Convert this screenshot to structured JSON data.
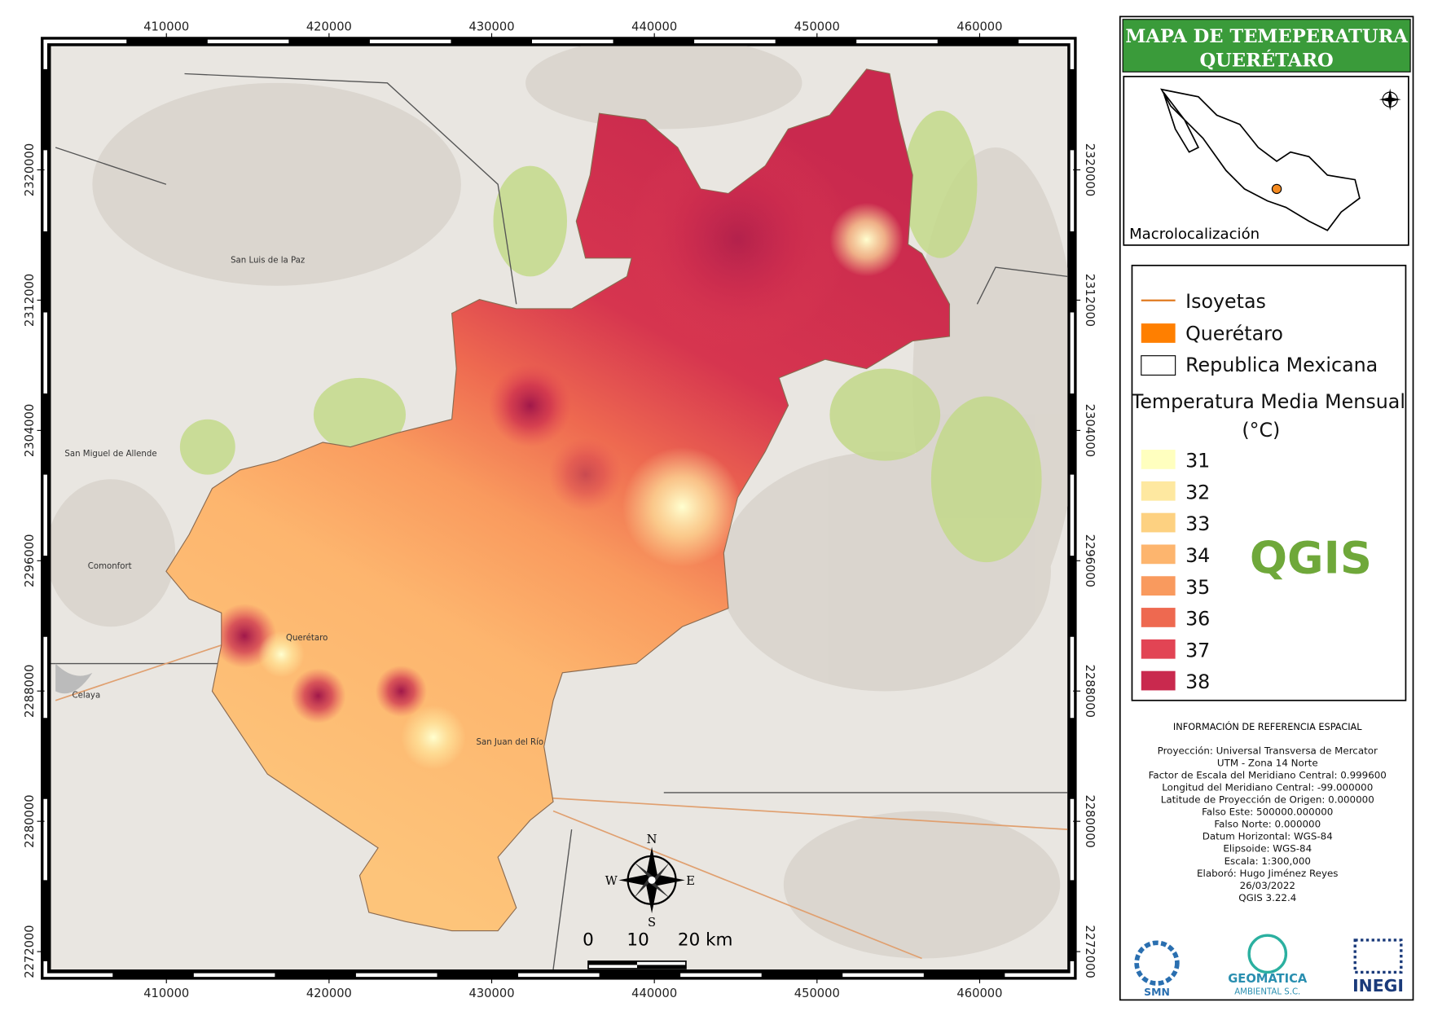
{
  "title": [
    "MAPA DE TEMEPERATURA",
    "QUERÉTARO"
  ],
  "map": {
    "xlim": [
      402900,
      465400
    ],
    "ylim": [
      2270900,
      2327600
    ],
    "xticks": [
      410000,
      420000,
      430000,
      440000,
      450000,
      460000
    ],
    "yticks": [
      2320000,
      2312000,
      2304000,
      2296000,
      2288000,
      2280000,
      2272000
    ],
    "places": [
      "San Miguel de Allende",
      "Celaya",
      "Comonfort",
      "Querétaro",
      "San Juan del Río",
      "San Luis de la Paz"
    ]
  },
  "inset": {
    "label": "Macrolocalización"
  },
  "legend": {
    "items": [
      "Isoyetas",
      "Querétaro",
      "Republica Mexicana"
    ],
    "title": "Temperatura Media Mensual",
    "unit": "(°C)",
    "classes": [
      {
        "value": 31,
        "color": "#ffffbf"
      },
      {
        "value": 32,
        "color": "#fee8a0"
      },
      {
        "value": 33,
        "color": "#fdd181"
      },
      {
        "value": 34,
        "color": "#fdb56e"
      },
      {
        "value": 35,
        "color": "#f99a5e"
      },
      {
        "value": 36,
        "color": "#ee6950"
      },
      {
        "value": 37,
        "color": "#e24454"
      },
      {
        "value": 38,
        "color": "#c9294e"
      }
    ]
  },
  "scale_bar": [
    "0",
    "10",
    "20 km"
  ],
  "compass": {
    "n": "N",
    "s": "S",
    "e": "E",
    "w": "W"
  },
  "reference": {
    "heading": "INFORMACIÓN DE REFERENCIA ESPACIAL",
    "lines": [
      "Proyección: Universal Transversa de Mercator",
      "UTM - Zona 14 Norte",
      "Factor de Escala del Meridiano Central: 0.999600",
      "Longitud del Meridiano Central: -99.000000",
      "Latitude de Proyección de Origen: 0.000000",
      "Falso Este: 500000.000000",
      "Falso Norte: 0.000000",
      "Datum Horizontal: WGS-84",
      "Elipsoide: WGS-84",
      "Escala: 1:300,000",
      "Elaboró: Hugo Jiménez Reyes",
      "26/03/2022",
      "QGIS 3.22.4"
    ]
  },
  "logos": {
    "qgis": "QGIS",
    "smn": "SMN",
    "geo1": "GEOMÁTICA",
    "geo2": "AMBIENTAL S.C.",
    "inegi": "INEGI"
  }
}
